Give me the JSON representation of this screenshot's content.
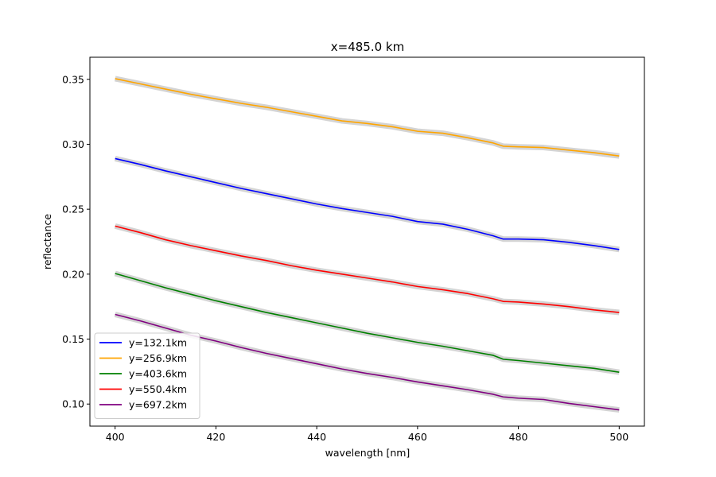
{
  "chart_data": {
    "type": "line",
    "title": "x=485.0 km",
    "xlabel": "wavelength [nm]",
    "ylabel": "reflectance",
    "xlim": [
      395,
      505
    ],
    "ylim": [
      0.083,
      0.367
    ],
    "xticks": [
      400,
      420,
      440,
      460,
      480,
      500
    ],
    "yticks": [
      0.1,
      0.15,
      0.2,
      0.25,
      0.3,
      0.35
    ],
    "ytick_labels": [
      "0.10",
      "0.15",
      "0.20",
      "0.25",
      "0.30",
      "0.35"
    ],
    "grid": false,
    "legend": "lower-left",
    "band_color": "#b0b0b0",
    "x": [
      400,
      405,
      410,
      415,
      420,
      425,
      430,
      435,
      440,
      445,
      450,
      455,
      460,
      465,
      470,
      475,
      477,
      480,
      485,
      490,
      495,
      500
    ],
    "series": [
      {
        "name": "y=132.1km",
        "color": "#0000ff",
        "values": [
          0.289,
          0.2845,
          0.2795,
          0.275,
          0.2705,
          0.266,
          0.262,
          0.258,
          0.254,
          0.2505,
          0.2475,
          0.2445,
          0.2405,
          0.2385,
          0.2345,
          0.2295,
          0.227,
          0.227,
          0.2265,
          0.2245,
          0.222,
          0.219
        ]
      },
      {
        "name": "y=256.9km",
        "color": "#ffa500",
        "values": [
          0.3505,
          0.3465,
          0.3425,
          0.3385,
          0.335,
          0.3315,
          0.3285,
          0.325,
          0.3215,
          0.318,
          0.316,
          0.3135,
          0.31,
          0.3085,
          0.305,
          0.301,
          0.2985,
          0.298,
          0.2975,
          0.2955,
          0.2935,
          0.291
        ]
      },
      {
        "name": "y=403.6km",
        "color": "#008000",
        "values": [
          0.2005,
          0.195,
          0.1895,
          0.1845,
          0.1795,
          0.175,
          0.1705,
          0.1665,
          0.1625,
          0.1585,
          0.1545,
          0.151,
          0.1475,
          0.1445,
          0.141,
          0.1375,
          0.1345,
          0.1335,
          0.1315,
          0.1295,
          0.1275,
          0.1245
        ]
      },
      {
        "name": "y=550.4km",
        "color": "#ff0000",
        "values": [
          0.237,
          0.232,
          0.2265,
          0.222,
          0.218,
          0.214,
          0.2105,
          0.2065,
          0.203,
          0.2,
          0.197,
          0.194,
          0.1905,
          0.188,
          0.185,
          0.181,
          0.179,
          0.1785,
          0.177,
          0.175,
          0.1725,
          0.1705
        ]
      },
      {
        "name": "y=697.2km",
        "color": "#800080",
        "values": [
          0.169,
          0.164,
          0.1585,
          0.153,
          0.1485,
          0.1435,
          0.139,
          0.135,
          0.131,
          0.127,
          0.1235,
          0.1205,
          0.117,
          0.114,
          0.111,
          0.1075,
          0.1055,
          0.1045,
          0.1035,
          0.1005,
          0.098,
          0.0955
        ]
      }
    ]
  }
}
